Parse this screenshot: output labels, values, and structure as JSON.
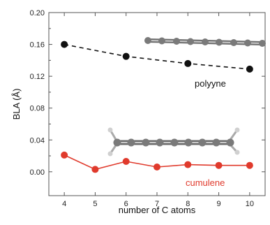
{
  "chart_data": {
    "type": "line",
    "xlabel": "number of C atoms",
    "ylabel": "BLA (Å)",
    "xlim": [
      3.5,
      10.5
    ],
    "ylim": [
      -0.03,
      0.2
    ],
    "xticks": [
      "4",
      "5",
      "6",
      "7",
      "8",
      "9",
      "10"
    ],
    "yticks": [
      "0.00",
      "0.04",
      "0.08",
      "0.12",
      "0.16",
      "0.20"
    ],
    "grid": false,
    "series": [
      {
        "name": "polyyne",
        "color": "#111111",
        "style": "dashed",
        "x": [
          4,
          6,
          8,
          10
        ],
        "y": [
          0.16,
          0.145,
          0.136,
          0.129
        ]
      },
      {
        "name": "cumulene",
        "color": "#e03a2c",
        "style": "solid",
        "x": [
          4,
          5,
          6,
          7,
          8,
          9,
          10
        ],
        "y": [
          0.021,
          0.003,
          0.013,
          0.006,
          0.009,
          0.008,
          0.008
        ]
      }
    ]
  },
  "illustrations": {
    "polyyne_icon": "polyyne-molecule-icon",
    "cumulene_icon": "cumulene-molecule-icon"
  }
}
